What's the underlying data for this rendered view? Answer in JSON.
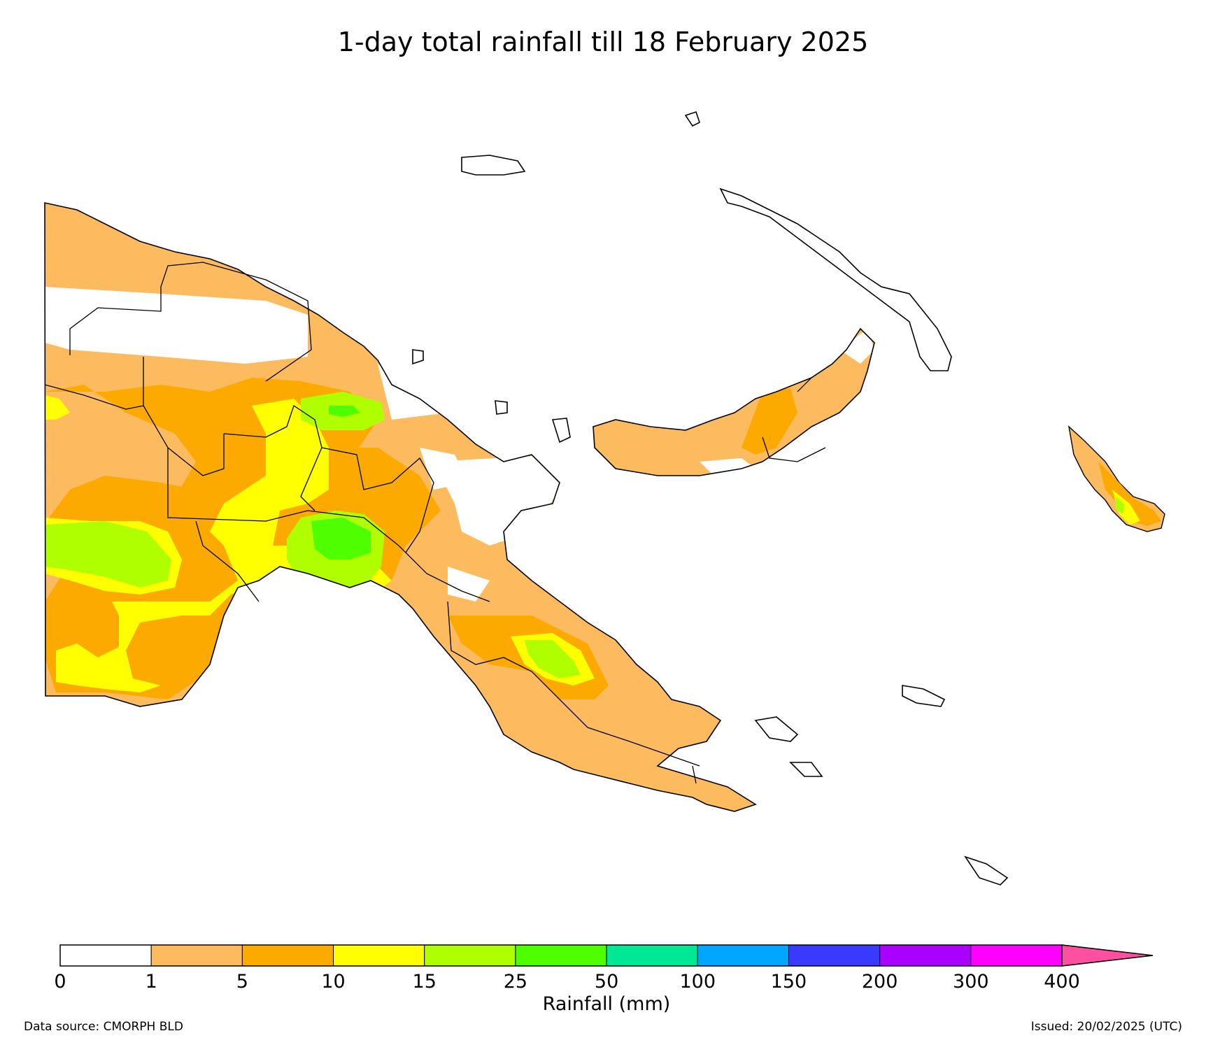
{
  "title": "1-day total rainfall till 18 February 2025",
  "colorbar": {
    "label": "Rainfall (mm)",
    "ticks": [
      "0",
      "1",
      "5",
      "10",
      "15",
      "25",
      "50",
      "100",
      "150",
      "200",
      "300",
      "400"
    ],
    "colors": [
      "#ffffff",
      "#fdbb5f",
      "#fcaa00",
      "#ffff00",
      "#b0ff00",
      "#4dff00",
      "#00e896",
      "#00a6ff",
      "#3a3aff",
      "#aa00ff",
      "#ff00ff",
      "#ff4fa0"
    ]
  },
  "footer": {
    "source": "Data source: CMORPH BLD",
    "issued": "Issued: 20/02/2025 (UTC)"
  }
}
